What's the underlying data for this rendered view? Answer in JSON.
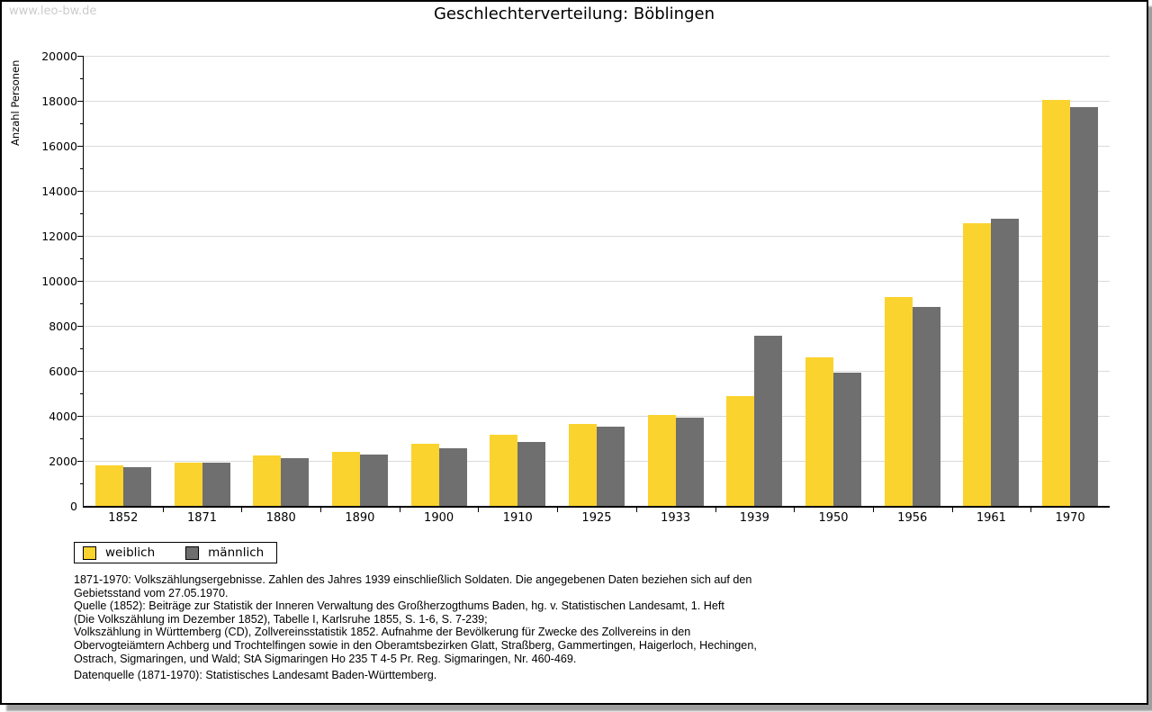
{
  "watermark": "www.leo-bw.de",
  "title": "Geschlechterverteilung: Böblingen",
  "chart_data": {
    "type": "bar",
    "title": "Geschlechterverteilung: Böblingen",
    "xlabel": "",
    "ylabel": "Anzahl Personen",
    "ylim": [
      0,
      20000
    ],
    "ytick_step": 2000,
    "yminor_step": 1000,
    "grid": true,
    "legend_position": "bottom-left",
    "categories": [
      "1852",
      "1871",
      "1880",
      "1890",
      "1900",
      "1910",
      "1925",
      "1933",
      "1939",
      "1950",
      "1956",
      "1961",
      "1970"
    ],
    "series": [
      {
        "name": "weiblich",
        "color": "#FBD32E",
        "values": [
          1820,
          1940,
          2230,
          2400,
          2760,
          3170,
          3660,
          4060,
          4890,
          6620,
          9300,
          12560,
          18030
        ]
      },
      {
        "name": "männlich",
        "color": "#6F6F6F",
        "values": [
          1710,
          1920,
          2140,
          2300,
          2550,
          2860,
          3540,
          3940,
          7560,
          5940,
          8860,
          12770,
          17740
        ]
      }
    ]
  },
  "legend": {
    "items": [
      {
        "label": "weiblich",
        "color": "#FBD32E"
      },
      {
        "label": "männlich",
        "color": "#6F6F6F"
      }
    ]
  },
  "footnotes": [
    "1871-1970: Volkszählungsergebnisse. Zahlen des Jahres 1939 einschließlich Soldaten. Die angegebenen Daten beziehen sich auf den",
    "Gebietsstand vom 27.05.1970.",
    "Quelle (1852): Beiträge zur Statistik der Inneren Verwaltung des Großherzogthums Baden, hg. v. Statistischen Landesamt, 1. Heft",
    "(Die Volkszählung im Dezember 1852), Tabelle I, Karlsruhe 1855, S. 1-6, S. 7-239;",
    "Volkszählung in Württemberg (CD), Zollvereinsstatistik 1852. Aufnahme der Bevölkerung für Zwecke des Zollvereins in den",
    "Obervogteiämtern Achberg und Trochtelfingen sowie in den Oberamtsbezirken Glatt, Straßberg, Gammertingen, Haigerloch, Hechingen,",
    "Ostrach, Sigmaringen, und Wald; StA Sigmaringen Ho 235 T 4-5 Pr. Reg. Sigmaringen, Nr. 460-469."
  ],
  "datasource": "Datenquelle (1871-1970): Statistisches Landesamt Baden-Württemberg.",
  "colors": {
    "grid": "#dadada",
    "axis": "#000000",
    "watermark": "#cccccc"
  }
}
